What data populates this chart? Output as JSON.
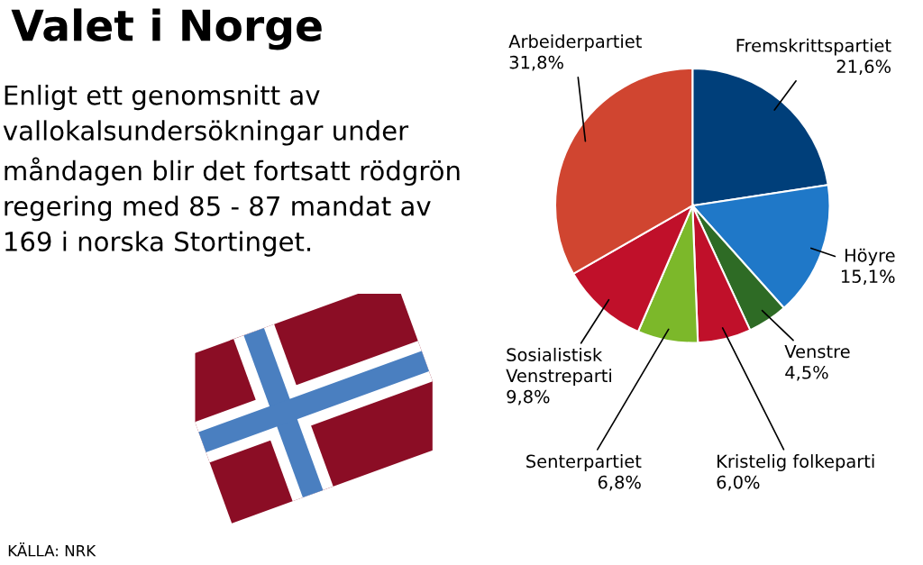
{
  "chart_data": {
    "type": "pie",
    "title": "Valet i Norge",
    "subtitle": "Enligt ett genomsnitt av vallokalsundersökningar under måndagen blir det fortsatt rödgrön regering med 85 - 87 mandat av 169 i norska Stortinget.",
    "categories": [
      "Fremskrittspartiet",
      "Höyre",
      "Venstre",
      "Kristelig folkeparti",
      "Senterpartiet",
      "Sosialistisk\nVenstreparti",
      "Arbeiderpartiet"
    ],
    "values": [
      21.6,
      15.1,
      4.5,
      6.0,
      6.8,
      9.8,
      31.8
    ],
    "value_labels": [
      "21,6%",
      "15,1%",
      "4,5%",
      "6,0%",
      "6,8%",
      "9,8%",
      "31,8%"
    ],
    "colors": [
      "#003f7a",
      "#1f78c8",
      "#2e6b25",
      "#c0102a",
      "#7cb82a",
      "#c0102a",
      "#d04530"
    ],
    "annotations": [
      "KÄLLA: NRK"
    ]
  }
}
